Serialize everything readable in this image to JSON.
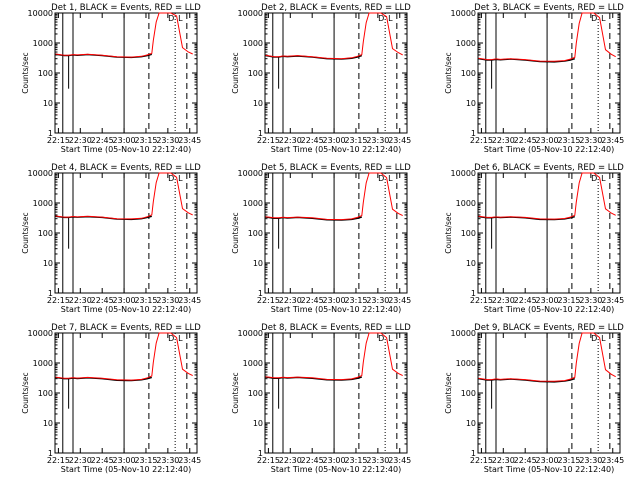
{
  "figure": {
    "x_axis_title": "Start Time (05-Nov-10 22:12:40)",
    "y_axis_title": "Counts/sec",
    "x_tick_labels": [
      "22:15",
      "22:30",
      "22:45",
      "23:00",
      "23:15",
      "23:30",
      "23:45"
    ],
    "y_tick_labels": [
      "1",
      "10",
      "100",
      "1000",
      "10000"
    ],
    "marker_labels": [
      "D",
      "L"
    ]
  },
  "chart_data": [
    {
      "type": "line",
      "title": "Det 1, BLACK = Events, RED = LLD",
      "xlabel": "Start Time (05-Nov-10 22:12:40)",
      "ylabel": "Counts/sec",
      "ylog": true,
      "ylim": [
        1,
        10000
      ],
      "xlim_minutes": [
        0,
        97.3
      ],
      "x": [
        "22:13",
        "22:19",
        "22:22",
        "22:25",
        "22:28",
        "22:35",
        "22:45",
        "22:55",
        "23:05",
        "23:12",
        "23:16",
        "23:19",
        "23:20",
        "23:22",
        "23:24",
        "23:26",
        "23:32",
        "23:36",
        "23:40",
        "23:44",
        "23:47"
      ],
      "series": [
        {
          "name": "BLACK = Events",
          "values": [
            420,
            380,
            380,
            400,
            390,
            410,
            380,
            340,
            330,
            350,
            380,
            420,
            null,
            null,
            null,
            null,
            null,
            null,
            null,
            null,
            null
          ]
        },
        {
          "name": "RED = LLD",
          "values": [
            430,
            390,
            390,
            410,
            400,
            420,
            390,
            350,
            340,
            360,
            400,
            450,
            1200,
            5000,
            10000,
            10000,
            10000,
            8000,
            700,
            500,
            430
          ]
        }
      ],
      "vertical_lines": {
        "solid": [
          "22:18",
          "22:25",
          "23:00"
        ],
        "dashed": [
          "23:17",
          "23:43"
        ],
        "dotted": [
          "23:35"
        ]
      }
    },
    {
      "type": "line",
      "title": "Det 2, BLACK = Events, RED = LLD",
      "xlabel": "Start Time (05-Nov-10 22:12:40)",
      "ylabel": "Counts/sec",
      "ylog": true,
      "ylim": [
        1,
        10000
      ],
      "xlim_minutes": [
        0,
        97.3
      ],
      "x": [
        "22:13",
        "22:19",
        "22:22",
        "22:25",
        "22:28",
        "22:35",
        "22:45",
        "22:55",
        "23:05",
        "23:12",
        "23:16",
        "23:19",
        "23:20",
        "23:22",
        "23:24",
        "23:26",
        "23:32",
        "23:36",
        "23:40",
        "23:44",
        "23:47"
      ],
      "series": [
        {
          "name": "BLACK = Events",
          "values": [
            380,
            340,
            340,
            360,
            350,
            370,
            340,
            300,
            290,
            310,
            340,
            380,
            null,
            null,
            null,
            null,
            null,
            null,
            null,
            null,
            null
          ]
        },
        {
          "name": "RED = LLD",
          "values": [
            390,
            350,
            350,
            370,
            360,
            380,
            350,
            310,
            300,
            320,
            360,
            410,
            1100,
            4800,
            10000,
            10000,
            10000,
            7500,
            650,
            480,
            400
          ]
        }
      ],
      "vertical_lines": {
        "solid": [
          "22:18",
          "22:25",
          "23:00"
        ],
        "dashed": [
          "23:17",
          "23:43"
        ],
        "dotted": [
          "23:35"
        ]
      }
    },
    {
      "type": "line",
      "title": "Det 3, BLACK = Events, RED = LLD",
      "xlabel": "Start Time (05-Nov-10 22:12:40)",
      "ylabel": "Counts/sec",
      "ylog": true,
      "ylim": [
        1,
        10000
      ],
      "xlim_minutes": [
        0,
        97.3
      ],
      "x": [
        "22:13",
        "22:19",
        "22:22",
        "22:25",
        "22:28",
        "22:35",
        "22:45",
        "22:55",
        "23:05",
        "23:12",
        "23:16",
        "23:19",
        "23:20",
        "23:22",
        "23:24",
        "23:26",
        "23:32",
        "23:36",
        "23:40",
        "23:44",
        "23:47"
      ],
      "series": [
        {
          "name": "BLACK = Events",
          "values": [
            300,
            270,
            270,
            285,
            275,
            290,
            270,
            240,
            235,
            250,
            270,
            300,
            null,
            null,
            null,
            null,
            null,
            null,
            null,
            null,
            null
          ]
        },
        {
          "name": "RED = LLD",
          "values": [
            310,
            280,
            280,
            295,
            285,
            300,
            280,
            250,
            245,
            260,
            290,
            330,
            1000,
            4500,
            10000,
            10000,
            10000,
            7000,
            600,
            420,
            350
          ]
        }
      ],
      "vertical_lines": {
        "solid": [
          "22:18",
          "22:25",
          "23:00"
        ],
        "dashed": [
          "23:17",
          "23:43"
        ],
        "dotted": [
          "23:35"
        ]
      }
    },
    {
      "type": "line",
      "title": "Det 4, BLACK = Events, RED = LLD",
      "xlabel": "Start Time (05-Nov-10 22:12:40)",
      "ylabel": "Counts/sec",
      "ylog": true,
      "ylim": [
        1,
        10000
      ],
      "xlim_minutes": [
        0,
        97.3
      ],
      "x": [
        "22:13",
        "22:19",
        "22:22",
        "22:25",
        "22:28",
        "22:35",
        "22:45",
        "22:55",
        "23:05",
        "23:12",
        "23:16",
        "23:19",
        "23:20",
        "23:22",
        "23:24",
        "23:26",
        "23:32",
        "23:36",
        "23:40",
        "23:44",
        "23:47"
      ],
      "series": [
        {
          "name": "BLACK = Events",
          "values": [
            360,
            330,
            330,
            345,
            335,
            350,
            330,
            290,
            285,
            300,
            330,
            360,
            null,
            null,
            null,
            null,
            null,
            null,
            null,
            null,
            null
          ]
        },
        {
          "name": "RED = LLD",
          "values": [
            370,
            340,
            340,
            355,
            345,
            360,
            340,
            300,
            295,
            310,
            350,
            400,
            1100,
            4800,
            10000,
            10000,
            10000,
            7200,
            650,
            470,
            400
          ]
        }
      ],
      "vertical_lines": {
        "solid": [
          "22:18",
          "22:25",
          "23:00"
        ],
        "dashed": [
          "23:17",
          "23:43"
        ],
        "dotted": [
          "23:35"
        ]
      }
    },
    {
      "type": "line",
      "title": "Det 5, BLACK = Events, RED = LLD",
      "xlabel": "Start Time (05-Nov-10 22:12:40)",
      "ylabel": "Counts/sec",
      "ylog": true,
      "ylim": [
        1,
        10000
      ],
      "xlim_minutes": [
        0,
        97.3
      ],
      "x": [
        "22:13",
        "22:19",
        "22:22",
        "22:25",
        "22:28",
        "22:35",
        "22:45",
        "22:55",
        "23:05",
        "23:12",
        "23:16",
        "23:19",
        "23:20",
        "23:22",
        "23:24",
        "23:26",
        "23:32",
        "23:36",
        "23:40",
        "23:44",
        "23:47"
      ],
      "series": [
        {
          "name": "BLACK = Events",
          "values": [
            340,
            310,
            310,
            325,
            315,
            330,
            310,
            275,
            270,
            285,
            310,
            340,
            null,
            null,
            null,
            null,
            null,
            null,
            null,
            null,
            null
          ]
        },
        {
          "name": "RED = LLD",
          "values": [
            350,
            320,
            320,
            335,
            325,
            340,
            320,
            285,
            280,
            295,
            330,
            380,
            1050,
            4700,
            10000,
            10000,
            10000,
            7000,
            620,
            450,
            380
          ]
        }
      ],
      "vertical_lines": {
        "solid": [
          "22:18",
          "22:25",
          "23:00"
        ],
        "dashed": [
          "23:17",
          "23:43"
        ],
        "dotted": [
          "23:35"
        ]
      }
    },
    {
      "type": "line",
      "title": "Det 6, BLACK = Events, RED = LLD",
      "xlabel": "Start Time (05-Nov-10 22:12:40)",
      "ylabel": "Counts/sec",
      "ylog": true,
      "ylim": [
        1,
        10000
      ],
      "xlim_minutes": [
        0,
        97.3
      ],
      "x": [
        "22:13",
        "22:19",
        "22:22",
        "22:25",
        "22:28",
        "22:35",
        "22:45",
        "22:55",
        "23:05",
        "23:12",
        "23:16",
        "23:19",
        "23:20",
        "23:22",
        "23:24",
        "23:26",
        "23:32",
        "23:36",
        "23:40",
        "23:44",
        "23:47"
      ],
      "series": [
        {
          "name": "BLACK = Events",
          "values": [
            350,
            320,
            320,
            335,
            325,
            340,
            320,
            285,
            280,
            295,
            320,
            350,
            null,
            null,
            null,
            null,
            null,
            null,
            null,
            null,
            null
          ]
        },
        {
          "name": "RED = LLD",
          "values": [
            360,
            330,
            330,
            345,
            335,
            350,
            330,
            295,
            290,
            305,
            340,
            390,
            1080,
            4700,
            10000,
            10000,
            10000,
            7100,
            640,
            460,
            390
          ]
        }
      ],
      "vertical_lines": {
        "solid": [
          "22:18",
          "22:25",
          "23:00"
        ],
        "dashed": [
          "23:17",
          "23:43"
        ],
        "dotted": [
          "23:35"
        ]
      }
    },
    {
      "type": "line",
      "title": "Det 7, BLACK = Events, RED = LLD",
      "xlabel": "Start Time (05-Nov-10 22:12:40)",
      "ylabel": "Counts/sec",
      "ylog": true,
      "ylim": [
        1,
        10000
      ],
      "xlim_minutes": [
        0,
        97.3
      ],
      "x": [
        "22:13",
        "22:19",
        "22:22",
        "22:25",
        "22:28",
        "22:35",
        "22:45",
        "22:55",
        "23:05",
        "23:12",
        "23:16",
        "23:19",
        "23:20",
        "23:22",
        "23:24",
        "23:26",
        "23:32",
        "23:36",
        "23:40",
        "23:44",
        "23:47"
      ],
      "series": [
        {
          "name": "BLACK = Events",
          "values": [
            330,
            300,
            300,
            315,
            305,
            320,
            300,
            265,
            260,
            275,
            300,
            330,
            null,
            null,
            null,
            null,
            null,
            null,
            null,
            null,
            null
          ]
        },
        {
          "name": "RED = LLD",
          "values": [
            340,
            310,
            310,
            325,
            315,
            330,
            310,
            275,
            270,
            285,
            320,
            370,
            1050,
            4600,
            10000,
            10000,
            10000,
            7000,
            620,
            450,
            380
          ]
        }
      ],
      "vertical_lines": {
        "solid": [
          "22:18",
          "22:25",
          "23:00"
        ],
        "dashed": [
          "23:17",
          "23:43"
        ],
        "dotted": [
          "23:35"
        ]
      }
    },
    {
      "type": "line",
      "title": "Det 8, BLACK = Events, RED = LLD",
      "xlabel": "Start Time (05-Nov-10 22:12:40)",
      "ylabel": "Counts/sec",
      "ylog": true,
      "ylim": [
        1,
        10000
      ],
      "xlim_minutes": [
        0,
        97.3
      ],
      "x": [
        "22:13",
        "22:19",
        "22:22",
        "22:25",
        "22:28",
        "22:35",
        "22:45",
        "22:55",
        "23:05",
        "23:12",
        "23:16",
        "23:19",
        "23:20",
        "23:22",
        "23:24",
        "23:26",
        "23:32",
        "23:36",
        "23:40",
        "23:44",
        "23:47"
      ],
      "series": [
        {
          "name": "BLACK = Events",
          "values": [
            340,
            310,
            310,
            325,
            315,
            330,
            310,
            275,
            270,
            285,
            310,
            340,
            null,
            null,
            null,
            null,
            null,
            null,
            null,
            null,
            null
          ]
        },
        {
          "name": "RED = LLD",
          "values": [
            350,
            320,
            320,
            335,
            325,
            340,
            320,
            285,
            280,
            295,
            330,
            380,
            1060,
            4600,
            10000,
            10000,
            10000,
            7000,
            620,
            450,
            380
          ]
        }
      ],
      "vertical_lines": {
        "solid": [
          "22:18",
          "22:25",
          "23:00"
        ],
        "dashed": [
          "23:17",
          "23:43"
        ],
        "dotted": [
          "23:35"
        ]
      }
    },
    {
      "type": "line",
      "title": "Det 9, BLACK = Events, RED = LLD",
      "xlabel": "Start Time (05-Nov-10 22:12:40)",
      "ylabel": "Counts/sec",
      "ylog": true,
      "ylim": [
        1,
        10000
      ],
      "xlim_minutes": [
        0,
        97.3
      ],
      "x": [
        "22:13",
        "22:19",
        "22:22",
        "22:25",
        "22:28",
        "22:35",
        "22:45",
        "22:55",
        "23:05",
        "23:12",
        "23:16",
        "23:19",
        "23:20",
        "23:22",
        "23:24",
        "23:26",
        "23:32",
        "23:36",
        "23:40",
        "23:44",
        "23:47"
      ],
      "series": [
        {
          "name": "BLACK = Events",
          "values": [
            300,
            270,
            270,
            285,
            275,
            290,
            270,
            240,
            235,
            250,
            270,
            300,
            null,
            null,
            null,
            null,
            null,
            null,
            null,
            null,
            null
          ]
        },
        {
          "name": "RED = LLD",
          "values": [
            310,
            280,
            280,
            295,
            285,
            300,
            280,
            250,
            245,
            260,
            290,
            330,
            1000,
            4500,
            10000,
            10000,
            10000,
            7000,
            600,
            420,
            350
          ]
        }
      ],
      "vertical_lines": {
        "solid": [
          "22:18",
          "22:25",
          "23:00"
        ],
        "dashed": [
          "23:17",
          "23:43"
        ],
        "dotted": [
          "23:35"
        ]
      }
    }
  ]
}
